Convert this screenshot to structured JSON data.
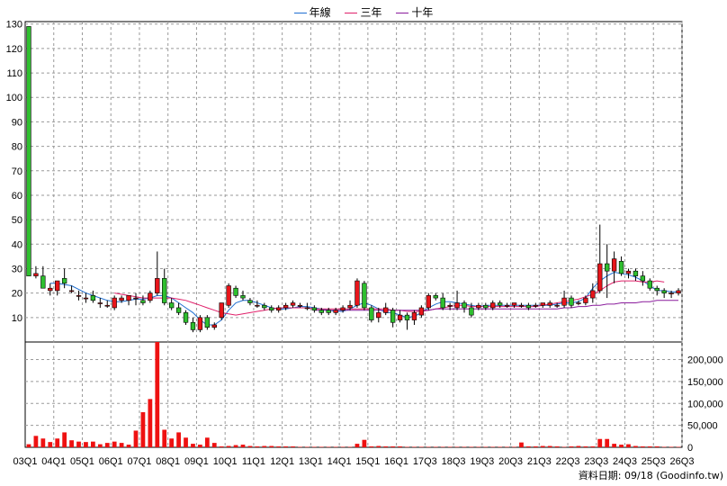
{
  "legend": [
    {
      "name": "年線",
      "color": "#1f6fd1"
    },
    {
      "name": "三年",
      "color": "#e0206a"
    },
    {
      "name": "十年",
      "color": "#8a1c9c"
    }
  ],
  "footer": {
    "date_label": "資料日期: 09/18  (Goodinfo.tw)"
  },
  "chart_data": [
    {
      "type": "candlestick",
      "title": "",
      "ylim": [
        0,
        131
      ],
      "yticks": [
        10,
        20,
        30,
        40,
        50,
        60,
        70,
        80,
        90,
        100,
        110,
        120,
        130
      ],
      "grid": true,
      "legend_position": "top-center",
      "x_labels": [
        "03Q1",
        "04Q1",
        "05Q1",
        "06Q1",
        "07Q1",
        "08Q1",
        "09Q1",
        "10Q1",
        "11Q1",
        "12Q1",
        "13Q1",
        "14Q1",
        "15Q1",
        "16Q1",
        "17Q3",
        "18Q3",
        "19Q3",
        "20Q3",
        "21Q3",
        "22Q3",
        "23Q3",
        "24Q3",
        "25Q3",
        "26Q3"
      ],
      "x_label_pos": [
        0,
        4,
        8,
        12,
        16,
        20,
        24,
        28,
        32,
        36,
        40,
        44,
        48,
        52,
        56,
        60,
        64,
        68,
        72,
        76,
        80,
        84,
        88,
        92
      ],
      "candles": [
        [
          129,
          129,
          27,
          27
        ],
        [
          27,
          31,
          26,
          28
        ],
        [
          27,
          31,
          22,
          22
        ],
        [
          21,
          24,
          19,
          22
        ],
        [
          21,
          25,
          19,
          25
        ],
        [
          26,
          30,
          22,
          24
        ],
        [
          21,
          23,
          20,
          21
        ],
        [
          19,
          21,
          17,
          19
        ],
        [
          18,
          20,
          16,
          18
        ],
        [
          19,
          21,
          16,
          17
        ],
        [
          16,
          18,
          14,
          16
        ],
        [
          15,
          17,
          14,
          15
        ],
        [
          14,
          19,
          13,
          18
        ],
        [
          17,
          19,
          16,
          18
        ],
        [
          17,
          19,
          15,
          19
        ],
        [
          18,
          20,
          15,
          18
        ],
        [
          17,
          19,
          15,
          16
        ],
        [
          17,
          21,
          16,
          20
        ],
        [
          20,
          37,
          19,
          26
        ],
        [
          26,
          30,
          15,
          16
        ],
        [
          16,
          18,
          13,
          14
        ],
        [
          14,
          16,
          11,
          12
        ],
        [
          12,
          13,
          7,
          8
        ],
        [
          8,
          10,
          4,
          5
        ],
        [
          5,
          11,
          4,
          10
        ],
        [
          10,
          11,
          5,
          6
        ],
        [
          6,
          8,
          5,
          7
        ],
        [
          10,
          16,
          9,
          16
        ],
        [
          15,
          24,
          14,
          23
        ],
        [
          22,
          23,
          18,
          19
        ],
        [
          19,
          21,
          17,
          18
        ],
        [
          17,
          18,
          15,
          16
        ],
        [
          15,
          17,
          14,
          15
        ],
        [
          15,
          16,
          13,
          14
        ],
        [
          14,
          15,
          12,
          13
        ],
        [
          13,
          15,
          12,
          14
        ],
        [
          14,
          16,
          13,
          15
        ],
        [
          15,
          17,
          14,
          16
        ],
        [
          15,
          16,
          14,
          15
        ],
        [
          14,
          16,
          13,
          14
        ],
        [
          14,
          15,
          12,
          13
        ],
        [
          13,
          14,
          11,
          12
        ],
        [
          13,
          14,
          11,
          12
        ],
        [
          12,
          14,
          11,
          13
        ],
        [
          13,
          15,
          12,
          14
        ],
        [
          14,
          17,
          13,
          15
        ],
        [
          15,
          26,
          14,
          25
        ],
        [
          24,
          25,
          13,
          14
        ],
        [
          14,
          15,
          8,
          9
        ],
        [
          10,
          14,
          8,
          12
        ],
        [
          12,
          16,
          11,
          14
        ],
        [
          13,
          14,
          6,
          8
        ],
        [
          9,
          13,
          8,
          11
        ],
        [
          11,
          12,
          5,
          9
        ],
        [
          9,
          13,
          7,
          12
        ],
        [
          11,
          15,
          10,
          14
        ],
        [
          14,
          20,
          13,
          19
        ],
        [
          19,
          20,
          17,
          18
        ],
        [
          18,
          20,
          13,
          14
        ],
        [
          15,
          16,
          13,
          15
        ],
        [
          14,
          21,
          13,
          16
        ],
        [
          16,
          17,
          12,
          14
        ],
        [
          14,
          16,
          10,
          11
        ],
        [
          14,
          16,
          13,
          15
        ],
        [
          15,
          16,
          13,
          14
        ],
        [
          14,
          17,
          13,
          16
        ],
        [
          16,
          17,
          14,
          15
        ],
        [
          15,
          16,
          14,
          15
        ],
        [
          15,
          16,
          14,
          16
        ],
        [
          15,
          16,
          14,
          15
        ],
        [
          15,
          16,
          13,
          14
        ],
        [
          15,
          16,
          14,
          15
        ],
        [
          15,
          16,
          14,
          16
        ],
        [
          15,
          17,
          14,
          16
        ],
        [
          15,
          16,
          14,
          15
        ],
        [
          15,
          21,
          14,
          18
        ],
        [
          18,
          19,
          14,
          15
        ],
        [
          16,
          17,
          15,
          16
        ],
        [
          16,
          19,
          15,
          18
        ],
        [
          18,
          24,
          16,
          21
        ],
        [
          21,
          48,
          20,
          32
        ],
        [
          32,
          40,
          18,
          29
        ],
        [
          29,
          37,
          24,
          34
        ],
        [
          33,
          35,
          27,
          28
        ],
        [
          28,
          30,
          26,
          29
        ],
        [
          29,
          30,
          25,
          27
        ],
        [
          27,
          29,
          23,
          25
        ],
        [
          25,
          26,
          21,
          22
        ],
        [
          22,
          23,
          19,
          21
        ],
        [
          21,
          22,
          18,
          20
        ],
        [
          20,
          21,
          18,
          20
        ],
        [
          20,
          22,
          19,
          21
        ]
      ],
      "ma": {
        "年線": [
          null,
          null,
          null,
          24,
          24,
          23.5,
          23,
          21.5,
          20,
          19,
          18,
          17,
          16.5,
          16.5,
          17,
          17.5,
          17.5,
          18,
          19,
          19,
          18,
          16,
          14,
          12,
          9,
          7,
          7,
          9,
          13,
          16,
          17,
          17,
          16,
          15,
          14,
          13.5,
          13.5,
          14,
          14.5,
          14.5,
          14,
          13.5,
          13,
          12.5,
          12.5,
          13.5,
          15,
          16,
          15,
          13.5,
          12,
          12,
          11,
          10,
          10.5,
          12,
          14,
          15.5,
          16.5,
          16.5,
          16,
          15.5,
          15,
          14.5,
          15,
          15,
          15,
          15,
          15,
          15,
          15,
          15,
          15,
          15,
          15.5,
          16,
          16,
          16.5,
          18,
          22,
          25,
          27,
          28.5,
          28,
          27.5,
          26.5,
          25,
          23,
          21,
          21,
          20.5,
          20.5
        ],
        "三年": [
          null,
          null,
          null,
          null,
          null,
          null,
          null,
          null,
          null,
          null,
          null,
          null,
          20,
          19.5,
          19,
          18.5,
          18,
          18,
          18,
          18,
          18,
          17.5,
          17,
          16,
          15,
          14,
          13,
          12,
          11.5,
          11,
          11.5,
          12,
          12.5,
          13,
          13.5,
          14,
          14,
          14,
          14,
          14,
          13.5,
          13.5,
          13.5,
          13.5,
          13.5,
          13.5,
          13.5,
          13.5,
          13.5,
          13.5,
          13.5,
          13,
          13,
          12.5,
          12.5,
          12.5,
          13,
          13.5,
          14,
          14.5,
          15,
          15,
          14.5,
          14.5,
          14.5,
          14.5,
          14.5,
          14.5,
          14.5,
          14.5,
          14.5,
          14.5,
          15,
          15.5,
          16,
          16.5,
          17,
          17.5,
          18.5,
          19.5,
          21,
          23,
          24.5,
          25,
          25,
          25,
          24.5,
          24.5,
          25,
          24.5
        ],
        "十年": [
          null,
          null,
          null,
          null,
          null,
          null,
          null,
          null,
          null,
          null,
          null,
          null,
          null,
          null,
          null,
          null,
          null,
          null,
          null,
          null,
          null,
          null,
          null,
          null,
          null,
          null,
          null,
          null,
          null,
          null,
          null,
          null,
          null,
          null,
          null,
          null,
          null,
          null,
          null,
          null,
          13,
          13,
          13,
          13,
          13,
          13,
          13,
          13,
          13,
          13,
          13,
          13,
          13,
          13,
          13,
          13,
          13,
          13.5,
          13.5,
          13.5,
          13.5,
          13.5,
          13.5,
          13.5,
          13.5,
          13.5,
          13.5,
          13.5,
          13.5,
          13.5,
          13.5,
          13.5,
          13.5,
          13.5,
          13.5,
          14,
          14,
          14.5,
          14.5,
          15,
          15,
          15.5,
          15.5,
          16,
          16,
          16,
          16.5,
          16.5,
          17,
          17,
          17,
          17
        ]
      }
    },
    {
      "type": "bar",
      "title": "",
      "ylim": [
        0,
        240000
      ],
      "yticks": [
        0,
        50000,
        100000,
        150000,
        200000
      ],
      "ytick_labels": [
        "0",
        "50,000",
        "100,000",
        "150,000",
        "200,000"
      ],
      "grid": true,
      "color": "#ee1111",
      "values": [
        7000,
        26000,
        20000,
        12000,
        20000,
        34000,
        16000,
        13000,
        12000,
        13000,
        7000,
        10000,
        13000,
        10000,
        6000,
        38000,
        80000,
        110000,
        240000,
        40000,
        20000,
        34000,
        22000,
        8000,
        6000,
        22000,
        10000,
        2000,
        3000,
        5000,
        6000,
        3000,
        2000,
        3000,
        3000,
        2000,
        2000,
        2000,
        1000,
        1000,
        1000,
        1000,
        1000,
        1000,
        1000,
        1000,
        8000,
        17000,
        2000,
        3000,
        2000,
        2000,
        2000,
        1000,
        1000,
        1000,
        1000,
        1000,
        1000,
        1000,
        1000,
        1000,
        1000,
        1000,
        1000,
        1000,
        1000,
        1000,
        1000,
        11000,
        2000,
        2000,
        3000,
        3000,
        2000,
        1000,
        2000,
        3000,
        2000,
        2000,
        19000,
        19000,
        8000,
        6000,
        7000,
        3000,
        2000,
        2000,
        2000,
        1000,
        1000,
        1000
      ]
    }
  ]
}
